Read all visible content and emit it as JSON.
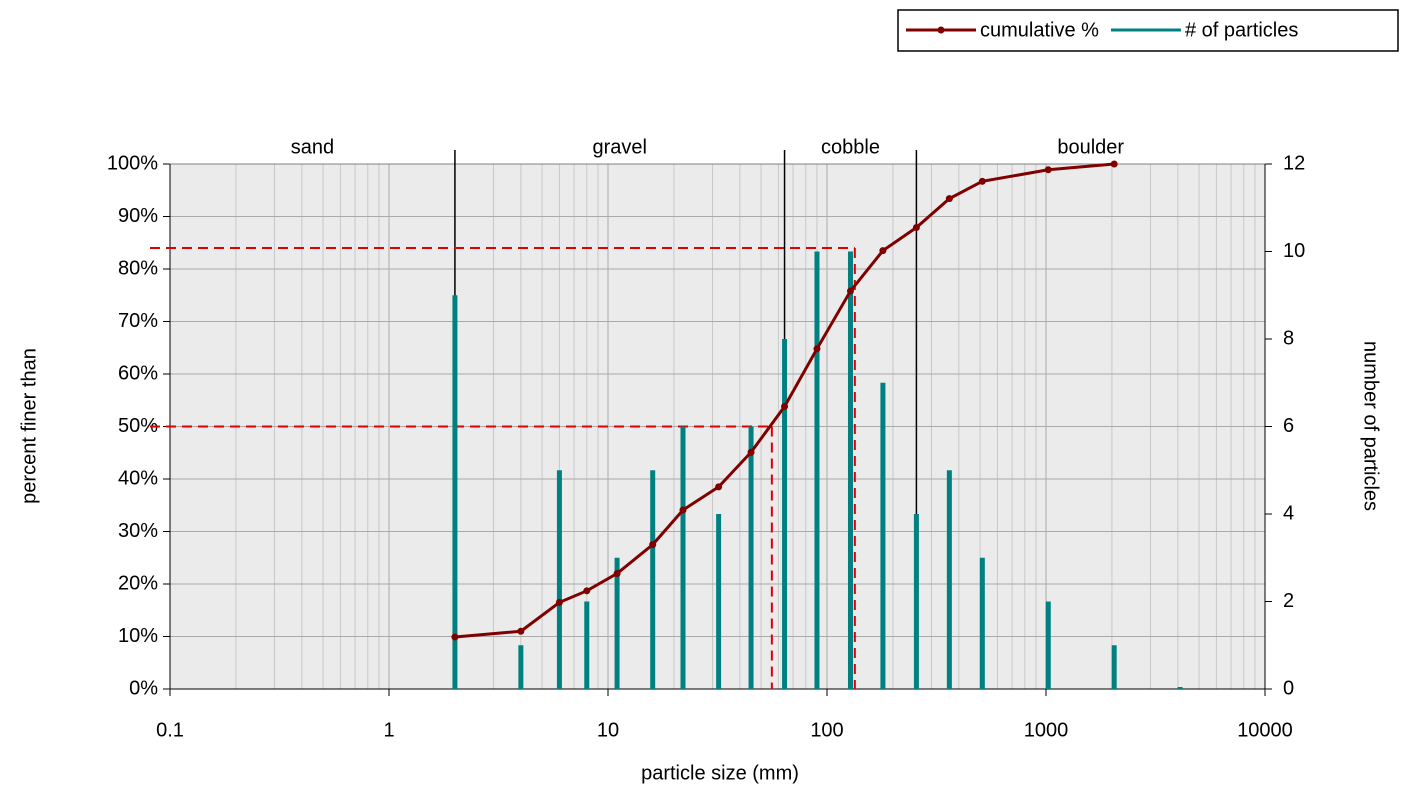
{
  "chart_data": {
    "type": "line_bar_combo",
    "x_label": "particle size (mm)",
    "y_label": "percent finer than",
    "y2_label": "number of particles",
    "log_x": true,
    "xlim": [
      0.1,
      10000
    ],
    "xticks": [
      0.1,
      1,
      10,
      100,
      1000,
      10000
    ],
    "ylim": [
      0,
      100
    ],
    "yticks": [
      {
        "value": 0,
        "label": "0%"
      },
      {
        "value": 10,
        "label": "10%"
      },
      {
        "value": 20,
        "label": "20%"
      },
      {
        "value": 30,
        "label": "30%"
      },
      {
        "value": 40,
        "label": "40%"
      },
      {
        "value": 50,
        "label": "50%"
      },
      {
        "value": 60,
        "label": "60%"
      },
      {
        "value": 70,
        "label": "70%"
      },
      {
        "value": 80,
        "label": "80%"
      },
      {
        "value": 90,
        "label": "90%"
      },
      {
        "value": 100,
        "label": "100%"
      }
    ],
    "y2lim": [
      0,
      12
    ],
    "y2ticks": [
      0,
      2,
      4,
      6,
      8,
      10,
      12
    ],
    "grid": true,
    "legend": "top-right",
    "x": [
      2,
      4,
      6,
      8,
      11,
      16,
      22,
      32,
      45,
      64,
      90,
      128,
      180,
      256,
      362,
      512,
      1024,
      2048,
      4096
    ],
    "series": [
      {
        "name": "cumulative %",
        "color": "#800000",
        "kind": "line",
        "values": [
          9.9,
          11.0,
          16.5,
          18.7,
          22.0,
          27.5,
          34.1,
          38.5,
          45.1,
          53.8,
          64.8,
          75.8,
          83.5,
          87.9,
          93.4,
          96.7,
          98.9,
          100,
          null
        ]
      },
      {
        "name": "# of particles",
        "color": "#008080",
        "kind": "bar",
        "axis": "y2",
        "values": [
          9,
          1,
          5,
          2,
          3,
          5,
          6,
          4,
          6,
          8,
          10,
          10,
          7,
          4,
          5,
          3,
          2,
          1,
          0
        ]
      }
    ],
    "zones": [
      {
        "label": "sand",
        "from": 0.1,
        "to": 2
      },
      {
        "label": "gravel",
        "from": 2,
        "to": 64
      },
      {
        "label": "cobble",
        "from": 64,
        "to": 256
      },
      {
        "label": "boulder",
        "from": 256,
        "to": 10000
      }
    ],
    "reference_lines": [
      {
        "y": 84,
        "x": 134
      },
      {
        "y": 50,
        "x": 56
      }
    ]
  }
}
